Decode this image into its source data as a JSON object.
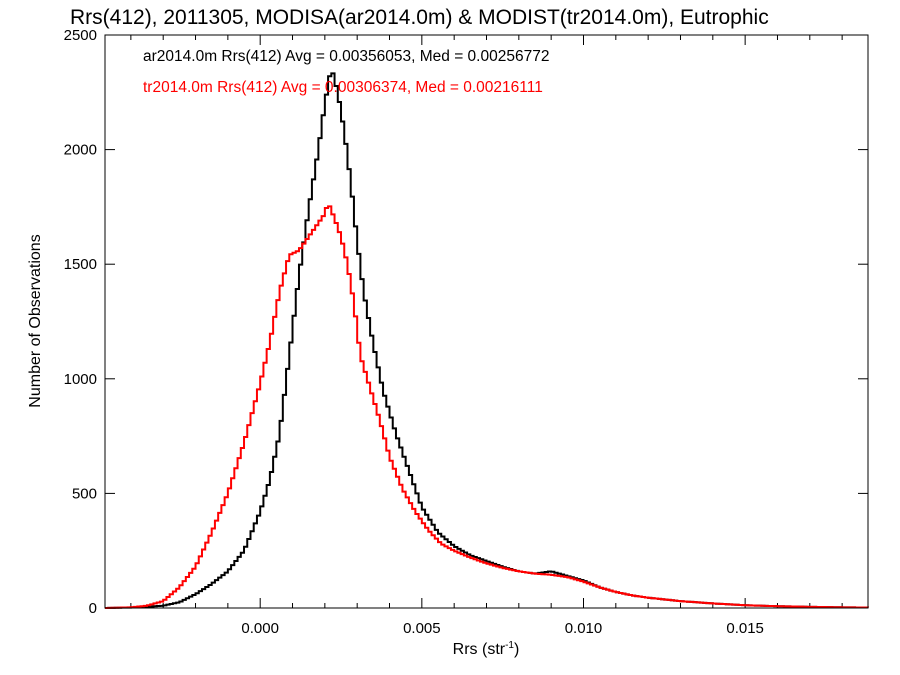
{
  "chart_data": {
    "type": "line",
    "title": "Rrs(412), 2011305, MODISA(ar2014.0m) & MODIST(tr2014.0m), Eutrophic",
    "xlabel_base": "Rrs (str",
    "xlabel_sup": "-1",
    "xlabel_close": ")",
    "ylabel": "Number of Observations",
    "xlim": [
      -0.0048,
      0.0188
    ],
    "ylim": [
      0,
      2500
    ],
    "x_ticks": [
      0.0,
      0.005,
      0.01,
      0.015
    ],
    "x_tick_labels": [
      "0.000",
      "0.005",
      "0.010",
      "0.015"
    ],
    "y_ticks": [
      0,
      500,
      1000,
      1500,
      2000,
      2500
    ],
    "y_tick_labels": [
      "0",
      "500",
      "1000",
      "1500",
      "2000",
      "2500"
    ],
    "step": "histogram",
    "series": [
      {
        "name": "ar2014.0m Rrs(412)",
        "legend": "ar2014.0m Rrs(412) Avg = 0.00356053, Med = 0.00256772",
        "color": "#000000",
        "points": [
          [
            -0.0048,
            0
          ],
          [
            -0.004,
            2
          ],
          [
            -0.0035,
            5
          ],
          [
            -0.003,
            10
          ],
          [
            -0.0025,
            25
          ],
          [
            -0.002,
            60
          ],
          [
            -0.0015,
            105
          ],
          [
            -0.001,
            160
          ],
          [
            -0.0005,
            250
          ],
          [
            0.0,
            420
          ],
          [
            0.0003,
            560
          ],
          [
            0.0006,
            760
          ],
          [
            0.0009,
            1100
          ],
          [
            0.0012,
            1450
          ],
          [
            0.0015,
            1740
          ],
          [
            0.0018,
            2000
          ],
          [
            0.002,
            2200
          ],
          [
            0.0022,
            2360
          ],
          [
            0.0024,
            2250
          ],
          [
            0.0026,
            2080
          ],
          [
            0.0028,
            1860
          ],
          [
            0.003,
            1600
          ],
          [
            0.0032,
            1380
          ],
          [
            0.0035,
            1150
          ],
          [
            0.0038,
            950
          ],
          [
            0.0042,
            760
          ],
          [
            0.0046,
            600
          ],
          [
            0.005,
            440
          ],
          [
            0.0055,
            330
          ],
          [
            0.006,
            270
          ],
          [
            0.0065,
            230
          ],
          [
            0.007,
            205
          ],
          [
            0.0075,
            180
          ],
          [
            0.008,
            160
          ],
          [
            0.0085,
            150
          ],
          [
            0.009,
            160
          ],
          [
            0.0095,
            140
          ],
          [
            0.01,
            120
          ],
          [
            0.0105,
            90
          ],
          [
            0.011,
            70
          ],
          [
            0.0115,
            55
          ],
          [
            0.012,
            45
          ],
          [
            0.013,
            30
          ],
          [
            0.014,
            20
          ],
          [
            0.015,
            12
          ],
          [
            0.016,
            8
          ],
          [
            0.017,
            5
          ],
          [
            0.018,
            3
          ],
          [
            0.0188,
            2
          ]
        ]
      },
      {
        "name": "tr2014.0m Rrs(412)",
        "legend": "tr2014.0m Rrs(412) Avg = 0.00306374, Med = 0.00216111",
        "color": "#ff0000",
        "points": [
          [
            -0.0048,
            0
          ],
          [
            -0.004,
            3
          ],
          [
            -0.0035,
            10
          ],
          [
            -0.003,
            30
          ],
          [
            -0.0025,
            90
          ],
          [
            -0.002,
            180
          ],
          [
            -0.0015,
            330
          ],
          [
            -0.001,
            500
          ],
          [
            -0.0005,
            720
          ],
          [
            0.0,
            980
          ],
          [
            0.0003,
            1160
          ],
          [
            0.0006,
            1380
          ],
          [
            0.0009,
            1540
          ],
          [
            0.0012,
            1560
          ],
          [
            0.0015,
            1620
          ],
          [
            0.0018,
            1680
          ],
          [
            0.002,
            1720
          ],
          [
            0.0021,
            1770
          ],
          [
            0.0023,
            1700
          ],
          [
            0.0025,
            1620
          ],
          [
            0.0027,
            1500
          ],
          [
            0.0029,
            1330
          ],
          [
            0.0031,
            1100
          ],
          [
            0.0034,
            960
          ],
          [
            0.0037,
            820
          ],
          [
            0.004,
            660
          ],
          [
            0.0044,
            520
          ],
          [
            0.0048,
            420
          ],
          [
            0.0052,
            340
          ],
          [
            0.0056,
            280
          ],
          [
            0.006,
            250
          ],
          [
            0.0065,
            220
          ],
          [
            0.007,
            195
          ],
          [
            0.0075,
            175
          ],
          [
            0.008,
            160
          ],
          [
            0.0085,
            150
          ],
          [
            0.009,
            145
          ],
          [
            0.0095,
            135
          ],
          [
            0.01,
            115
          ],
          [
            0.0105,
            90
          ],
          [
            0.011,
            70
          ],
          [
            0.0115,
            55
          ],
          [
            0.012,
            45
          ],
          [
            0.013,
            30
          ],
          [
            0.014,
            20
          ],
          [
            0.015,
            12
          ],
          [
            0.016,
            8
          ],
          [
            0.017,
            5
          ],
          [
            0.018,
            3
          ],
          [
            0.0188,
            2
          ]
        ]
      }
    ]
  }
}
